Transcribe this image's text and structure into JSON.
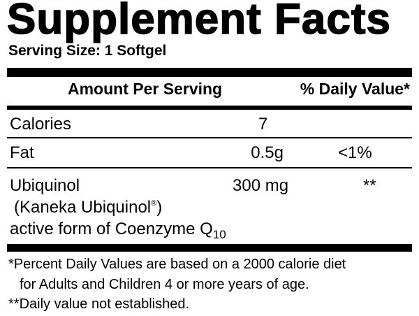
{
  "title": "Supplement Facts",
  "serving_size": "Serving Size: 1 Softgel",
  "header": {
    "amount": "Amount Per Serving",
    "dv": "% Daily Value*"
  },
  "rows": [
    {
      "name": "Calories",
      "amount": "7",
      "dv": ""
    },
    {
      "name": "Fat",
      "amount": "0.5g",
      "dv": "<1%"
    },
    {
      "name": "Ubiquinol",
      "name_line2": "(Kaneka Ubiquinol",
      "registered": "®",
      "name_line2_end": ")",
      "name_line3": "active form of Coenzyme Q",
      "subscript": "10",
      "amount": "300 mg",
      "dv": "**"
    }
  ],
  "footnotes": [
    "*Percent Daily Values are based on a 2000 calorie diet",
    "for Adults and Children 4 or more years of age.",
    "**Daily value not established."
  ]
}
